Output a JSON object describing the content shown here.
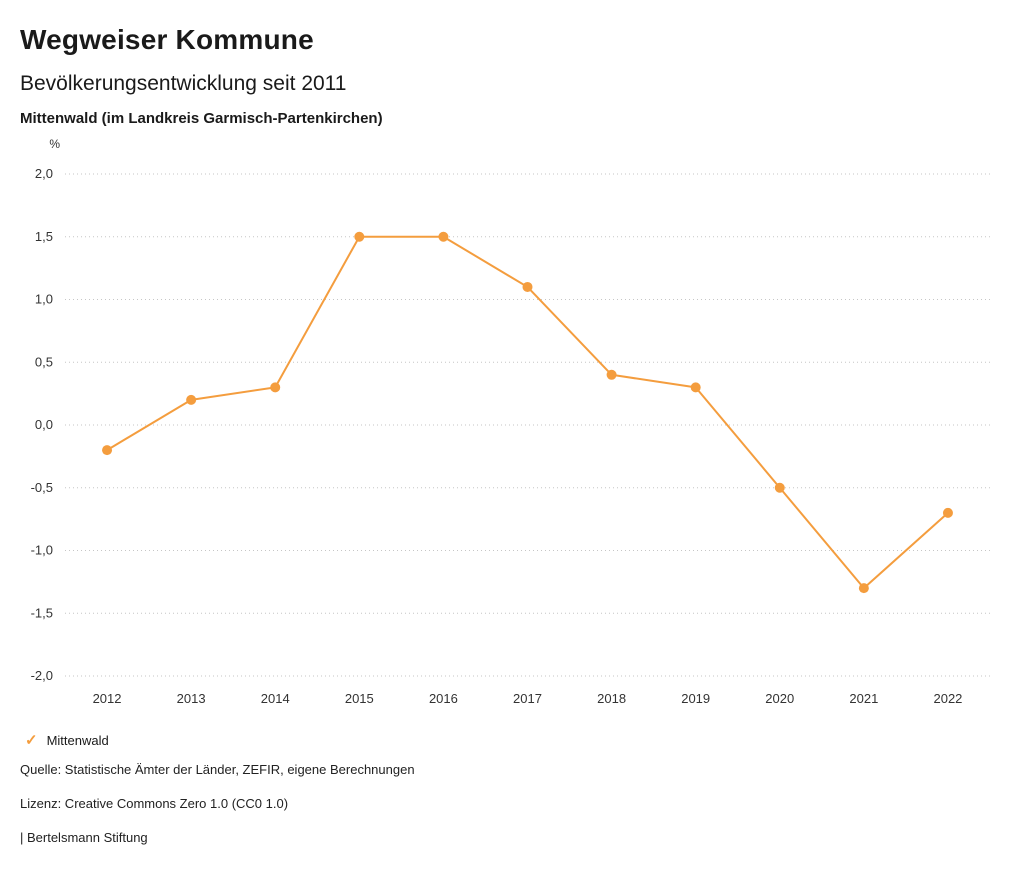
{
  "header": {
    "title": "Wegweiser Kommune",
    "subtitle": "Bevölkerungsentwicklung seit 2011",
    "region": "Mittenwald (im Landkreis Garmisch-Partenkirchen)"
  },
  "chart_data": {
    "type": "line",
    "title": "Bevölkerungsentwicklung seit 2011",
    "subtitle": "Mittenwald (im Landkreis Garmisch-Partenkirchen)",
    "unit_label": "%",
    "categories": [
      "2012",
      "2013",
      "2014",
      "2015",
      "2016",
      "2017",
      "2018",
      "2019",
      "2020",
      "2021",
      "2022"
    ],
    "series": [
      {
        "name": "Mittenwald",
        "color": "#F49D3E",
        "values": [
          -0.2,
          0.2,
          0.3,
          1.5,
          1.5,
          1.1,
          0.4,
          0.3,
          -0.5,
          -1.3,
          -0.7
        ]
      }
    ],
    "ylim": [
      -2.0,
      2.0
    ],
    "ytick_step": 0.5,
    "yticks": [
      {
        "value": 2.0,
        "label": "2,0"
      },
      {
        "value": 1.5,
        "label": "1,5"
      },
      {
        "value": 1.0,
        "label": "1,0"
      },
      {
        "value": 0.5,
        "label": "0,5"
      },
      {
        "value": 0.0,
        "label": "0,0"
      },
      {
        "value": -0.5,
        "label": "-0,5"
      },
      {
        "value": -1.0,
        "label": "-1,0"
      },
      {
        "value": -1.5,
        "label": "-1,5"
      },
      {
        "value": -2.0,
        "label": "-2,0"
      }
    ],
    "grid": "horizontal-dotted",
    "legend_position": "bottom-left"
  },
  "legend": {
    "marker_glyph": "✓",
    "items": [
      {
        "label": "Mittenwald",
        "color": "#F49D3E",
        "marker": "check"
      }
    ]
  },
  "footer": {
    "source": "Quelle: Statistische Ämter der Länder, ZEFIR, eigene Berechnungen",
    "license": "Lizenz: Creative Commons Zero 1.0 (CC0 1.0)",
    "attribution": "| Bertelsmann Stiftung"
  },
  "colors": {
    "accent": "#F49D3E",
    "grid": "#c6c6c6",
    "text": "#1a1a1a"
  }
}
